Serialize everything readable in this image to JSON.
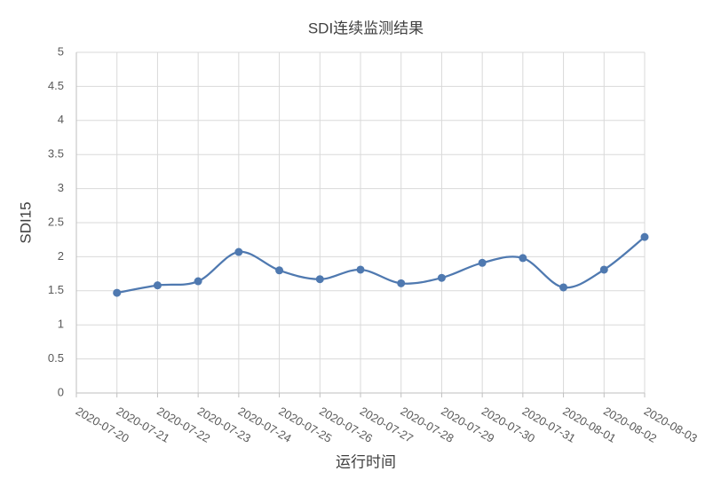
{
  "chart_data": {
    "type": "line",
    "title": "SDI连续监测结果",
    "x_label": "运行时间",
    "y_label": "SDI15",
    "categories": [
      "2020-07-20",
      "2020-07-21",
      "2020-07-22",
      "2020-07-23",
      "2020-07-24",
      "2020-07-25",
      "2020-07-26",
      "2020-07-27",
      "2020-07-28",
      "2020-07-29",
      "2020-07-30",
      "2020-07-31",
      "2020-08-01",
      "2020-08-02",
      "2020-08-03"
    ],
    "series": [
      {
        "name": "SDI15",
        "color": "#4f79b0",
        "values": [
          null,
          1.47,
          1.58,
          1.64,
          2.07,
          1.8,
          1.67,
          1.81,
          1.61,
          1.69,
          1.91,
          1.98,
          1.55,
          1.81,
          2.29
        ]
      }
    ],
    "ylim": [
      0,
      5
    ],
    "yticks": [
      0,
      0.5,
      1,
      1.5,
      2,
      2.5,
      3,
      3.5,
      4,
      4.5,
      5
    ],
    "grid": true,
    "smooth": true
  }
}
